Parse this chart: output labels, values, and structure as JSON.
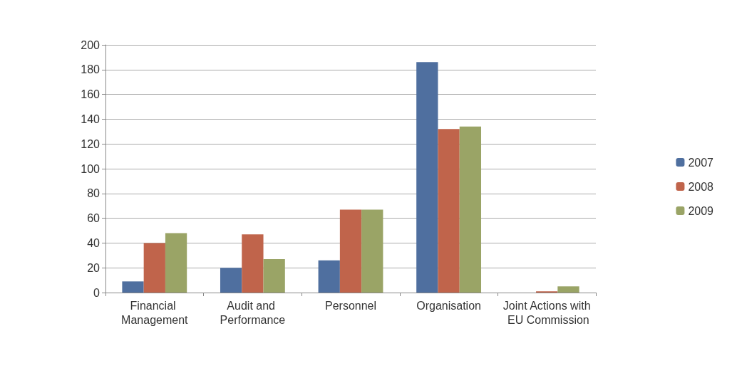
{
  "chart_data": {
    "type": "bar",
    "categories": [
      "Financial Management",
      "Audit and Performance",
      "Personnel",
      "Organisation",
      "Joint Actions with EU Commission"
    ],
    "series": [
      {
        "name": "2007",
        "color": "#4f6f9f",
        "values": [
          9,
          20,
          26,
          186,
          0
        ]
      },
      {
        "name": "2008",
        "color": "#c0644b",
        "values": [
          40,
          47,
          67,
          132,
          1
        ]
      },
      {
        "name": "2009",
        "color": "#9aa466",
        "values": [
          48,
          27,
          67,
          134,
          5
        ]
      }
    ],
    "ylim": [
      0,
      200
    ],
    "yticks": [
      0,
      20,
      40,
      60,
      80,
      100,
      120,
      140,
      160,
      180,
      200
    ],
    "grid": "y",
    "legend": "right"
  }
}
